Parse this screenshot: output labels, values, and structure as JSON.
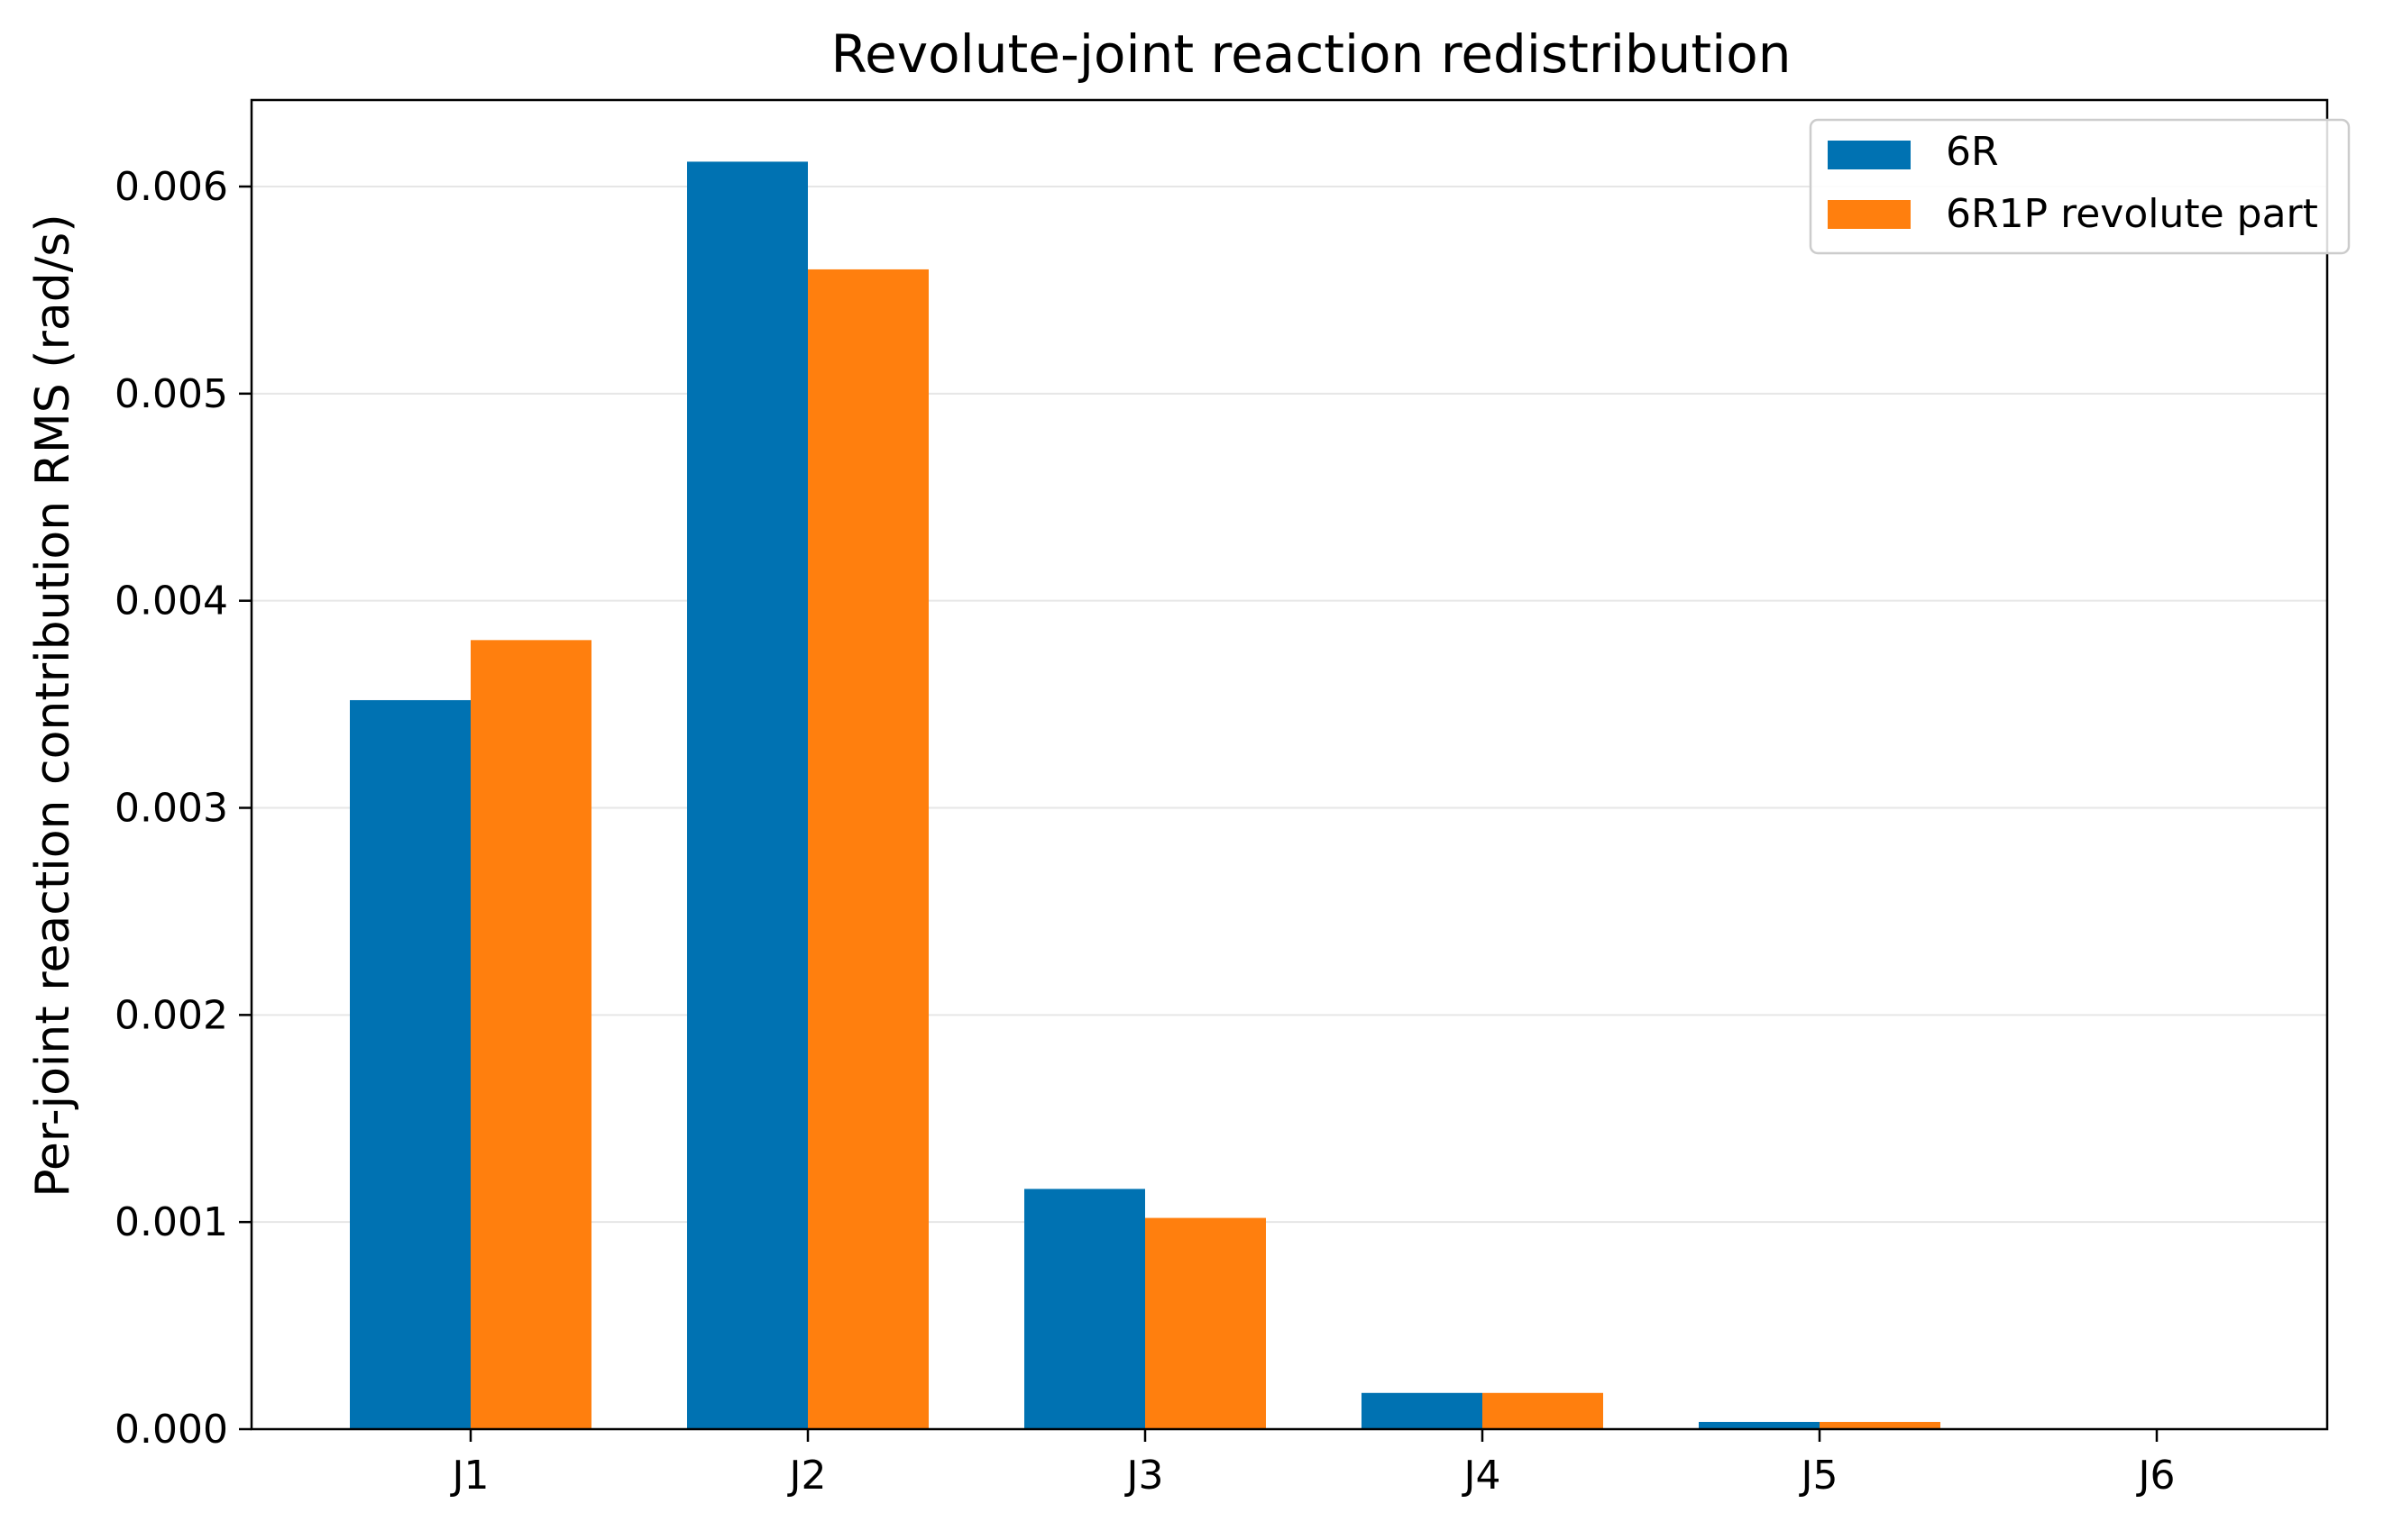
{
  "chart_data": {
    "type": "bar",
    "title": "Revolute-joint reaction redistribution",
    "xlabel": "",
    "ylabel": "Per-joint reaction contribution RMS (rad/s)",
    "categories": [
      "J1",
      "J2",
      "J3",
      "J4",
      "J5",
      "J6"
    ],
    "series": [
      {
        "name": "6R",
        "color": "#0072B2",
        "values": [
          0.00352,
          0.00612,
          0.00116,
          0.000175,
          3.5e-05,
          0.0
        ]
      },
      {
        "name": "6R1P revolute part",
        "color": "#FF7F0E",
        "values": [
          0.00381,
          0.0056,
          0.00102,
          0.000175,
          3.5e-05,
          0.0
        ]
      }
    ],
    "ylim": [
      0,
      0.0064
    ],
    "yticks": [
      "0.000",
      "0.001",
      "0.002",
      "0.003",
      "0.004",
      "0.005",
      "0.006"
    ],
    "grid": "y",
    "legend_position": "top-right"
  }
}
